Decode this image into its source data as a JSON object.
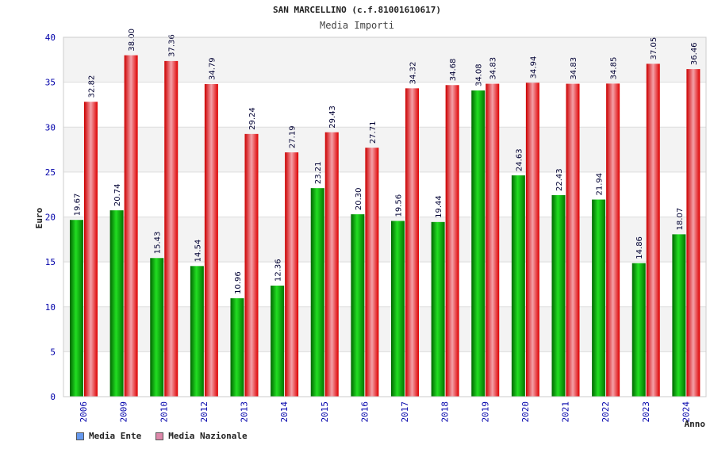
{
  "chart_data": {
    "type": "bar",
    "title": "SAN MARCELLINO (c.f.81001610617)",
    "subtitle": "Media Importi",
    "xlabel": "Anno",
    "ylabel": "Euro",
    "ylim": [
      0,
      40
    ],
    "yticks": [
      0,
      5,
      10,
      15,
      20,
      25,
      30,
      35,
      40
    ],
    "grid": true,
    "legend_position": "bottom-left",
    "categories": [
      "2006",
      "2009",
      "2010",
      "2012",
      "2013",
      "2014",
      "2015",
      "2016",
      "2017",
      "2018",
      "2019",
      "2020",
      "2021",
      "2022",
      "2023",
      "2024"
    ],
    "series": [
      {
        "name": "Media Ente",
        "color": "#00aa00",
        "legend_color": "#6699ee",
        "values": [
          19.67,
          20.74,
          15.43,
          14.54,
          10.96,
          12.36,
          23.21,
          20.3,
          19.56,
          19.44,
          34.08,
          24.63,
          22.43,
          21.94,
          14.86,
          18.07
        ],
        "labels": [
          "19.67",
          "20.74",
          "15.43",
          "14.54",
          "10.96",
          "12.36",
          "23.21",
          "20.30",
          "19.56",
          "19.44",
          "34.08",
          "24.63",
          "22.43",
          "21.94",
          "14.86",
          "18.07"
        ]
      },
      {
        "name": "Media Nazionale",
        "color": "#ee1111",
        "legend_color": "#dd88aa",
        "values": [
          32.82,
          38.0,
          37.36,
          34.79,
          29.24,
          27.19,
          29.43,
          27.71,
          34.32,
          34.68,
          34.83,
          34.94,
          34.83,
          34.85,
          37.05,
          36.46
        ],
        "labels": [
          "32.82",
          "38.00",
          "37.36",
          "34.79",
          "29.24",
          "27.19",
          "29.43",
          "27.71",
          "34.32",
          "34.68",
          "34.83",
          "34.94",
          "34.83",
          "34.85",
          "37.05",
          "36.46"
        ]
      }
    ]
  }
}
